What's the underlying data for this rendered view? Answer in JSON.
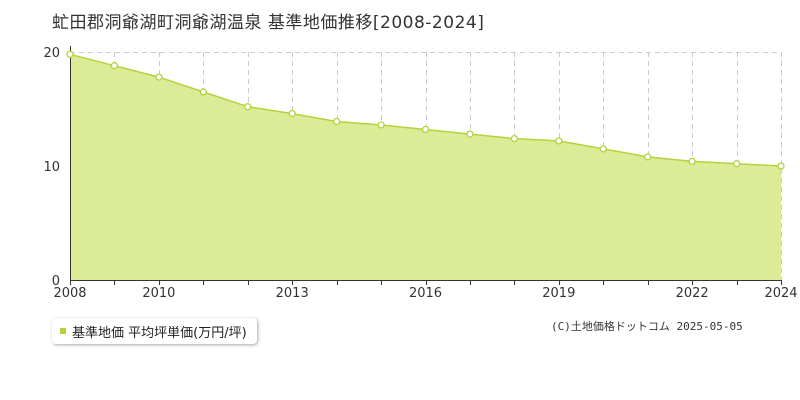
{
  "title": "虻田郡洞爺湖町洞爺湖温泉 基準地価推移[2008-2024]",
  "credit": "(C)土地価格ドットコム 2025-05-05",
  "colors": {
    "fill": "#dcec96",
    "line": "#b3d33c",
    "marker_fill": "#ffffff",
    "grid": "#cccccc",
    "axis": "#333333"
  },
  "chart_data": {
    "type": "area",
    "x": [
      2008,
      2009,
      2010,
      2011,
      2012,
      2013,
      2014,
      2015,
      2016,
      2017,
      2018,
      2019,
      2020,
      2021,
      2022,
      2023,
      2024
    ],
    "x_tick_labels": [
      "2008",
      "2010",
      "2013",
      "2016",
      "2019",
      "2022",
      "2024"
    ],
    "y_tick_labels": [
      "0",
      "10",
      "20"
    ],
    "ylim": [
      0,
      20
    ],
    "grid": true,
    "legend_position": "bottom-left",
    "series": [
      {
        "name": "基準地価 平均坪単価(万円/坪)",
        "values": [
          19.8,
          18.8,
          17.8,
          16.5,
          15.2,
          14.6,
          13.9,
          13.6,
          13.2,
          12.8,
          12.4,
          12.2,
          11.5,
          10.8,
          10.4,
          10.2,
          10.0
        ]
      }
    ]
  }
}
